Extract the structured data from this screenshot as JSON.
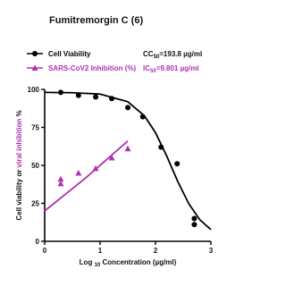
{
  "chart_data": {
    "type": "scatter",
    "title": "Fumitremorgin  C (6)",
    "xlabel": [
      "Log ",
      "10",
      " Concentration (µg/ml)"
    ],
    "ylabel": [
      "Cell viability or ",
      "viral inhibition",
      " %"
    ],
    "annotations": [
      {
        "parts": [
          "CC",
          "50",
          "=193.8 µg/ml"
        ],
        "color": "#000000"
      },
      {
        "parts": [
          "IC",
          "50",
          "=9.801 µg/ml"
        ],
        "color": "#b030b0"
      }
    ],
    "xlim": [
      0,
      3
    ],
    "xticks": [
      0,
      1,
      2,
      3
    ],
    "ylim": [
      0,
      100
    ],
    "yticks": [
      0,
      25,
      50,
      75,
      100
    ],
    "series": [
      {
        "name": "Cell Viability",
        "color": "#000000",
        "marker": "circle",
        "x": [
          0.29,
          0.61,
          0.92,
          1.21,
          1.5,
          1.77,
          2.1,
          2.39,
          2.7,
          2.7
        ],
        "values": [
          98,
          96,
          95,
          94,
          88,
          82,
          62,
          51,
          15,
          11
        ],
        "fit": {
          "x": [
            0,
            0.5,
            1,
            1.5,
            1.8,
            2,
            2.2,
            2.4,
            2.6,
            2.8,
            3
          ],
          "values": [
            98,
            97.8,
            96.9,
            91.9,
            82.6,
            71.5,
            56.3,
            39.5,
            24.8,
            14.2,
            7.7
          ]
        }
      },
      {
        "name": "SARS-CoV2 Inhibition (%)",
        "color": "#b030b0",
        "marker": "triangle",
        "x": [
          0.29,
          0.29,
          0.61,
          0.92,
          1.21,
          1.5
        ],
        "values": [
          41,
          38,
          45,
          48,
          55,
          61
        ],
        "fit": {
          "x": [
            0,
            0.75,
            1.5
          ],
          "values": [
            20,
            42,
            66
          ]
        }
      }
    ]
  }
}
